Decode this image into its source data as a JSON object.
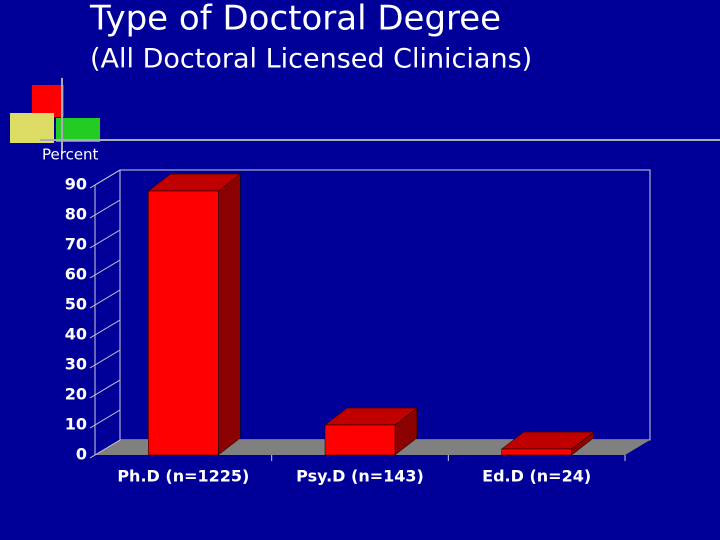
{
  "chart_data": {
    "type": "bar",
    "title": "Type of Doctoral Degree",
    "subtitle": "(All Doctoral Licensed Clinicians)",
    "y_label": "Percent",
    "categories": [
      "Ph.D (n=1225)",
      "Psy.D (n=143)",
      "Ed.D (n=24)"
    ],
    "values": [
      88,
      10,
      2
    ],
    "color": "#ff0000",
    "ylim": [
      0,
      90
    ],
    "yticks": [
      0,
      10,
      20,
      30,
      40,
      50,
      60,
      70,
      80,
      90
    ],
    "grid": false
  }
}
